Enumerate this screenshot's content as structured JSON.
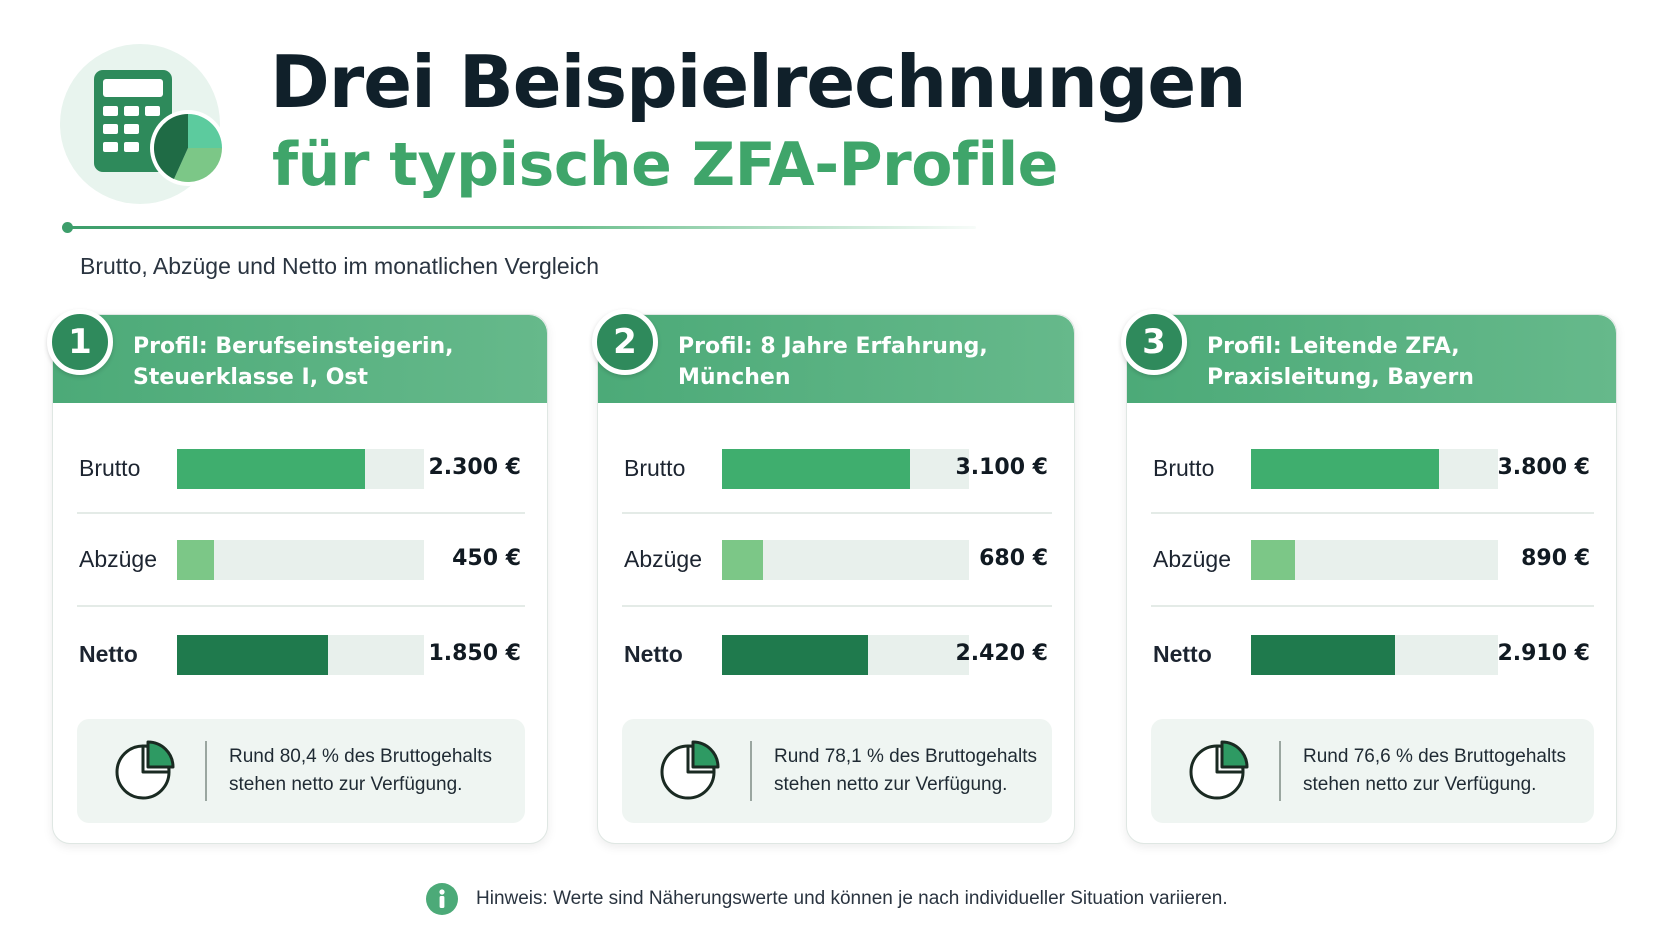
{
  "header": {
    "title": "Drei Beispielrechnungen",
    "subtitle": "für typische ZFA-Profile",
    "icon": "calculator-pie-icon",
    "intro": "Brutto, Abzüge und Netto im monatlichen Vergleich"
  },
  "colors": {
    "brutto": "#3fae6e",
    "abzuege": "#7cc787",
    "netto": "#1f7a4d",
    "header": "#4caa78",
    "title_green": "#3fa56a"
  },
  "profiles": [
    {
      "number": "1",
      "title_line1": "Profil: Berufseinsteigerin,",
      "title_line2": "Steuerklasse I, Ost",
      "rows": {
        "brutto": {
          "label": "Brutto",
          "value_text": "2.300 €",
          "value": 2300
        },
        "abzuege": {
          "label": "Abzüge",
          "value_text": "450 €",
          "value": 450
        },
        "netto": {
          "label": "Netto",
          "value_text": "1.850 €",
          "value": 1850
        }
      },
      "note_line1": "Rund 80,4 % des Bruttogehalts",
      "note_line2": "stehen netto zur Verfügung.",
      "note_icon": "pie-chart-icon"
    },
    {
      "number": "2",
      "title_line1": "Profil: 8 Jahre Erfahrung,",
      "title_line2": "München",
      "rows": {
        "brutto": {
          "label": "Brutto",
          "value_text": "3.100 €",
          "value": 3100
        },
        "abzuege": {
          "label": "Abzüge",
          "value_text": "680 €",
          "value": 680
        },
        "netto": {
          "label": "Netto",
          "value_text": "2.420 €",
          "value": 2420
        }
      },
      "note_line1": "Rund 78,1 % des Bruttogehalts",
      "note_line2": "stehen netto zur Verfügung.",
      "note_icon": "pie-chart-icon"
    },
    {
      "number": "3",
      "title_line1": "Profil: Leitende ZFA,",
      "title_line2": "Praxisleitung, Bayern",
      "rows": {
        "brutto": {
          "label": "Brutto",
          "value_text": "3.800 €",
          "value": 3800
        },
        "abzuege": {
          "label": "Abzüge",
          "value_text": "890 €",
          "value": 890
        },
        "netto": {
          "label": "Netto",
          "value_text": "2.910 €",
          "value": 2910
        }
      },
      "note_line1": "Rund 76,6 % des Bruttogehalts",
      "note_line2": "stehen netto zur Verfügung.",
      "note_icon": "pie-chart-icon"
    }
  ],
  "footer": {
    "icon": "info-icon",
    "text": "Hinweis: Werte sind Näherungswerte und können je nach individueller Situation variieren."
  }
}
